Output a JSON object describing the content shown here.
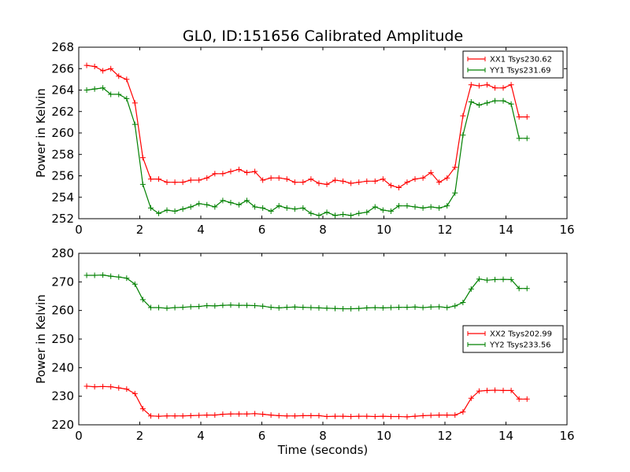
{
  "title": "GL0, ID:151656 Calibrated Amplitude",
  "chart_data": [
    {
      "type": "line",
      "xlabel": "",
      "ylabel": "Power in Kelvin",
      "xlim": [
        0,
        16
      ],
      "ylim": [
        252,
        268
      ],
      "xticks": [
        0,
        2,
        4,
        6,
        8,
        10,
        12,
        14,
        16
      ],
      "yticks": [
        252,
        254,
        256,
        258,
        260,
        262,
        264,
        266,
        268
      ],
      "legend_position": "top-right",
      "x": [
        0.26,
        0.52,
        0.79,
        1.05,
        1.31,
        1.57,
        1.84,
        2.1,
        2.36,
        2.62,
        2.89,
        3.15,
        3.41,
        3.67,
        3.94,
        4.2,
        4.46,
        4.72,
        4.98,
        5.25,
        5.51,
        5.77,
        6.03,
        6.3,
        6.56,
        6.82,
        7.08,
        7.35,
        7.61,
        7.87,
        8.13,
        8.4,
        8.66,
        8.92,
        9.18,
        9.44,
        9.71,
        9.97,
        10.23,
        10.49,
        10.76,
        11.02,
        11.28,
        11.54,
        11.81,
        12.07,
        12.33,
        12.59,
        12.86,
        13.12,
        13.38,
        13.64,
        13.91,
        14.17,
        14.43,
        14.69
      ],
      "series": [
        {
          "name": "XX1 Tsys230.62",
          "color": "#ff0000",
          "values": [
            266.3,
            266.2,
            265.8,
            266.0,
            265.3,
            265.0,
            262.8,
            257.7,
            255.7,
            255.7,
            255.4,
            255.4,
            255.4,
            255.6,
            255.6,
            255.8,
            256.2,
            256.2,
            256.4,
            256.6,
            256.3,
            256.4,
            255.6,
            255.8,
            255.8,
            255.7,
            255.4,
            255.4,
            255.7,
            255.3,
            255.2,
            255.6,
            255.5,
            255.3,
            255.4,
            255.5,
            255.5,
            255.7,
            255.1,
            254.9,
            255.4,
            255.7,
            255.8,
            256.3,
            255.4,
            255.8,
            256.8,
            261.6,
            264.5,
            264.4,
            264.5,
            264.2,
            264.2,
            264.5,
            261.5,
            261.5
          ]
        },
        {
          "name": "YY1 Tsys231.69",
          "color": "#008000",
          "values": [
            264.0,
            264.1,
            264.2,
            263.6,
            263.6,
            263.2,
            260.8,
            255.2,
            253.0,
            252.5,
            252.8,
            252.7,
            252.9,
            253.1,
            253.4,
            253.3,
            253.1,
            253.7,
            253.5,
            253.3,
            253.7,
            253.1,
            253.0,
            252.7,
            253.2,
            253.0,
            252.9,
            253.0,
            252.5,
            252.3,
            252.6,
            252.3,
            252.4,
            252.3,
            252.5,
            252.6,
            253.1,
            252.8,
            252.7,
            253.2,
            253.2,
            253.1,
            253.0,
            253.1,
            253.0,
            253.2,
            254.4,
            259.8,
            262.9,
            262.6,
            262.8,
            263.0,
            263.0,
            262.7,
            259.5,
            259.5
          ]
        }
      ]
    },
    {
      "type": "line",
      "xlabel": "Time (seconds)",
      "ylabel": "Power in Kelvin",
      "xlim": [
        0,
        16
      ],
      "ylim": [
        220,
        280
      ],
      "xticks": [
        0,
        2,
        4,
        6,
        8,
        10,
        12,
        14,
        16
      ],
      "yticks": [
        220,
        230,
        240,
        250,
        260,
        270,
        280
      ],
      "legend_position": "center-right",
      "x": [
        0.26,
        0.52,
        0.79,
        1.05,
        1.31,
        1.57,
        1.84,
        2.1,
        2.36,
        2.62,
        2.89,
        3.15,
        3.41,
        3.67,
        3.94,
        4.2,
        4.46,
        4.72,
        4.98,
        5.25,
        5.51,
        5.77,
        6.03,
        6.3,
        6.56,
        6.82,
        7.08,
        7.35,
        7.61,
        7.87,
        8.13,
        8.4,
        8.66,
        8.92,
        9.18,
        9.44,
        9.71,
        9.97,
        10.23,
        10.49,
        10.76,
        11.02,
        11.28,
        11.54,
        11.81,
        12.07,
        12.33,
        12.59,
        12.86,
        13.12,
        13.38,
        13.64,
        13.91,
        14.17,
        14.43,
        14.69
      ],
      "series": [
        {
          "name": "XX2 Tsys202.99",
          "color": "#ff0000",
          "values": [
            233.5,
            233.3,
            233.4,
            233.3,
            232.9,
            232.5,
            230.9,
            225.6,
            223.1,
            223.0,
            223.1,
            223.1,
            223.1,
            223.2,
            223.3,
            223.4,
            223.4,
            223.7,
            223.8,
            223.8,
            223.8,
            223.9,
            223.7,
            223.4,
            223.2,
            223.1,
            223.1,
            223.2,
            223.2,
            223.2,
            222.9,
            223.0,
            223.0,
            222.9,
            223.0,
            223.0,
            222.9,
            223.0,
            222.9,
            222.9,
            222.8,
            223.0,
            223.2,
            223.3,
            223.4,
            223.4,
            223.4,
            224.5,
            229.3,
            231.8,
            232.0,
            232.1,
            232.0,
            232.0,
            229.0,
            229.0
          ]
        },
        {
          "name": "YY2 Tsys233.56",
          "color": "#008000",
          "values": [
            272.3,
            272.3,
            272.4,
            272.0,
            271.7,
            271.3,
            269.2,
            263.8,
            261.0,
            261.0,
            260.8,
            261.0,
            261.1,
            261.3,
            261.4,
            261.7,
            261.6,
            261.8,
            261.9,
            261.8,
            261.8,
            261.7,
            261.5,
            261.1,
            260.9,
            261.1,
            261.2,
            261.1,
            261.0,
            260.9,
            260.8,
            260.7,
            260.6,
            260.6,
            260.7,
            260.9,
            261.0,
            260.9,
            261.0,
            261.1,
            261.1,
            261.2,
            261.0,
            261.2,
            261.3,
            261.0,
            261.6,
            262.8,
            267.5,
            271.0,
            270.6,
            270.8,
            270.9,
            270.8,
            267.7,
            267.7
          ]
        }
      ]
    }
  ]
}
